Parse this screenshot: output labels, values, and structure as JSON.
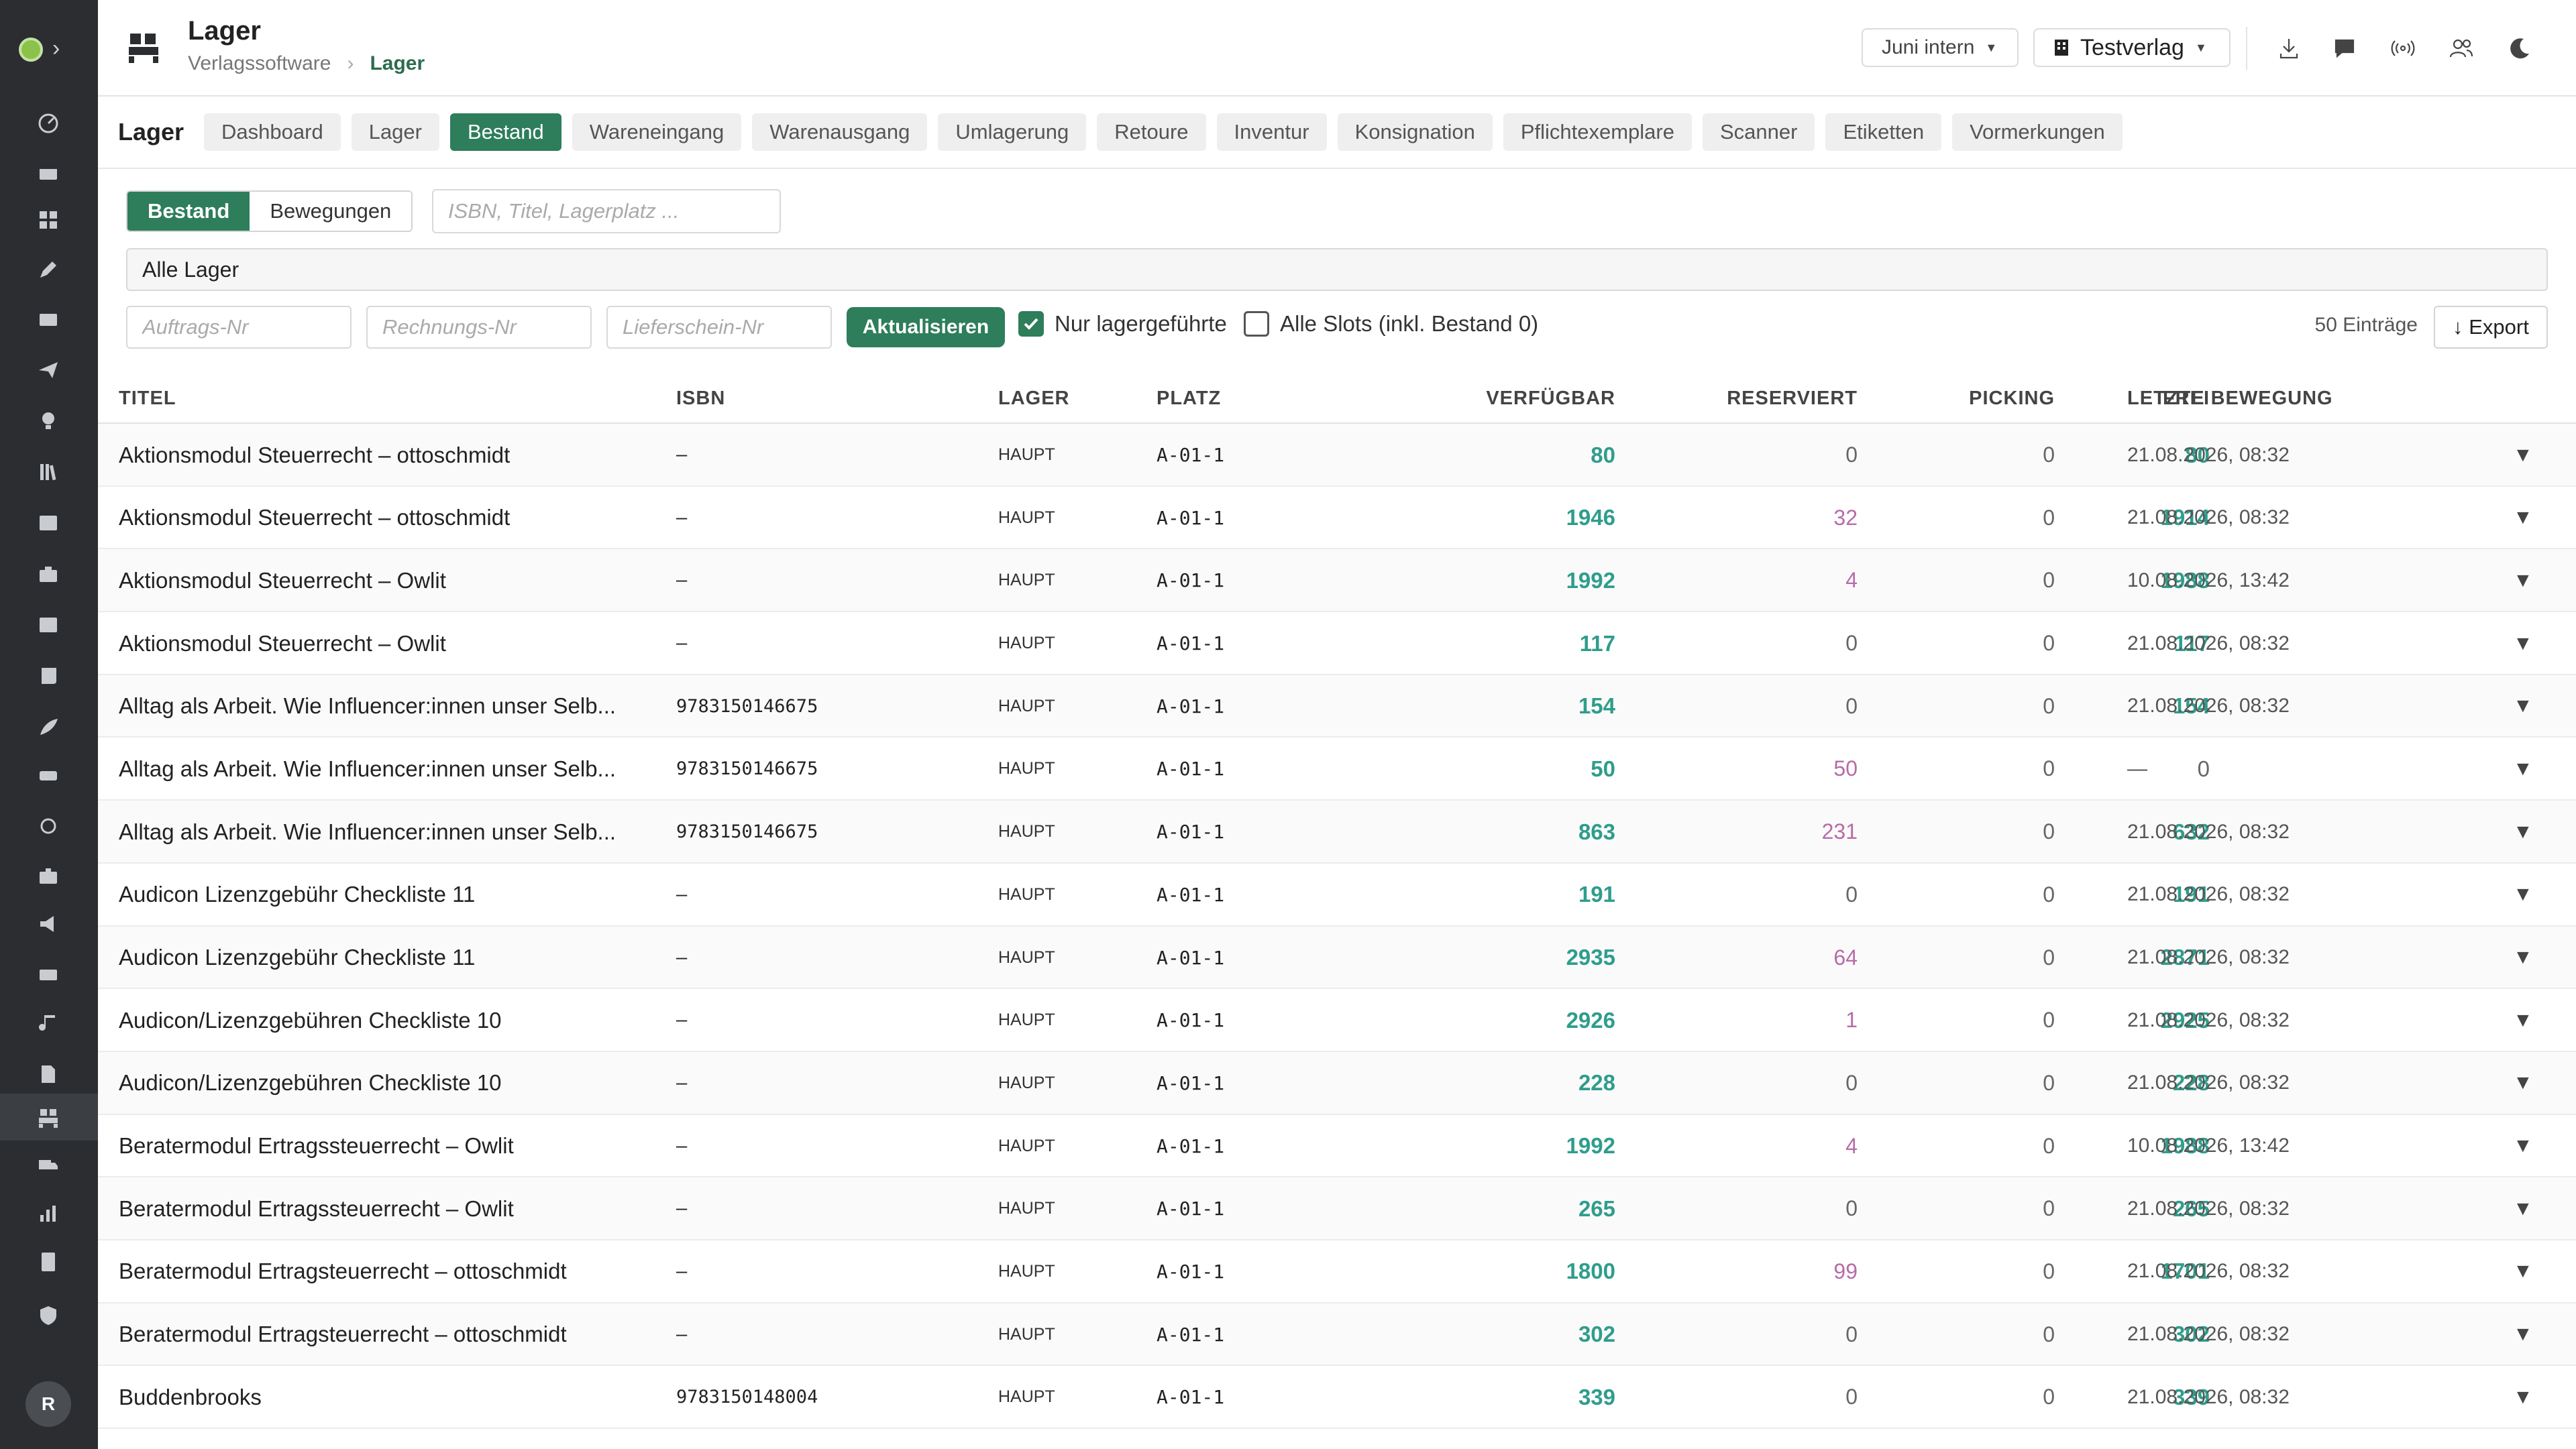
{
  "header": {
    "title": "Lager",
    "breadcrumb": [
      "Verlagssoftware",
      "Lager"
    ],
    "period_select": "Juni intern",
    "publisher_select": "Testverlag"
  },
  "module_tabs": {
    "module_label": "Lager",
    "items": [
      "Dashboard",
      "Lager",
      "Bestand",
      "Wareneingang",
      "Warenausgang",
      "Umlagerung",
      "Retoure",
      "Inventur",
      "Konsignation",
      "Pflichtexemplare",
      "Scanner",
      "Etiketten",
      "Vormerkungen"
    ],
    "active": "Bestand"
  },
  "filters": {
    "view_toggle": [
      "Bestand",
      "Bewegungen"
    ],
    "search_placeholder": "ISBN, Titel, Lagerplatz ...",
    "lager_select": "Alle Lager",
    "order_placeholder": "Auftrags-Nr",
    "invoice_placeholder": "Rechnungs-Nr",
    "delivery_placeholder": "Lieferschein-Nr",
    "refresh_label": "Aktualisieren",
    "only_stocked_label": "Nur lagergeführte",
    "only_stocked_checked": true,
    "all_slots_label": "Alle Slots (inkl. Bestand 0)",
    "all_slots_checked": false,
    "entry_count": "50 Einträge",
    "export_label": "↓ Export"
  },
  "table": {
    "columns": [
      "Titel",
      "ISBN",
      "Lager",
      "Platz",
      "Verfügbar",
      "Reserviert",
      "Picking",
      "Frei",
      "Letzte Bewegung"
    ],
    "rows": [
      {
        "titel": "Aktionsmodul Steuerrecht – ottoschmidt",
        "isbn": "–",
        "lager": "HAUPT",
        "platz": "A-01-1",
        "verfuegbar": "80",
        "reserviert": "0",
        "picking": "0",
        "frei": "80",
        "bewegung": "21.08.2026, 08:32"
      },
      {
        "titel": "Aktionsmodul Steuerrecht – ottoschmidt",
        "isbn": "–",
        "lager": "HAUPT",
        "platz": "A-01-1",
        "verfuegbar": "1946",
        "reserviert": "32",
        "picking": "0",
        "frei": "1914",
        "bewegung": "21.08.2026, 08:32"
      },
      {
        "titel": "Aktionsmodul Steuerrecht – Owlit",
        "isbn": "–",
        "lager": "HAUPT",
        "platz": "A-01-1",
        "verfuegbar": "1992",
        "reserviert": "4",
        "picking": "0",
        "frei": "1988",
        "bewegung": "10.08.2026, 13:42"
      },
      {
        "titel": "Aktionsmodul Steuerrecht – Owlit",
        "isbn": "–",
        "lager": "HAUPT",
        "platz": "A-01-1",
        "verfuegbar": "117",
        "reserviert": "0",
        "picking": "0",
        "frei": "117",
        "bewegung": "21.08.2026, 08:32"
      },
      {
        "titel": "Alltag als Arbeit. Wie Influencer:innen unser Selb...",
        "isbn": "9783150146675",
        "lager": "HAUPT",
        "platz": "A-01-1",
        "verfuegbar": "154",
        "reserviert": "0",
        "picking": "0",
        "frei": "154",
        "bewegung": "21.08.2026, 08:32"
      },
      {
        "titel": "Alltag als Arbeit. Wie Influencer:innen unser Selb...",
        "isbn": "9783150146675",
        "lager": "HAUPT",
        "platz": "A-01-1",
        "verfuegbar": "50",
        "reserviert": "50",
        "picking": "0",
        "frei": "0",
        "bewegung": "—"
      },
      {
        "titel": "Alltag als Arbeit. Wie Influencer:innen unser Selb...",
        "isbn": "9783150146675",
        "lager": "HAUPT",
        "platz": "A-01-1",
        "verfuegbar": "863",
        "reserviert": "231",
        "picking": "0",
        "frei": "632",
        "bewegung": "21.08.2026, 08:32"
      },
      {
        "titel": "Audicon Lizenzgebühr Checkliste 11",
        "isbn": "–",
        "lager": "HAUPT",
        "platz": "A-01-1",
        "verfuegbar": "191",
        "reserviert": "0",
        "picking": "0",
        "frei": "191",
        "bewegung": "21.08.2026, 08:32"
      },
      {
        "titel": "Audicon Lizenzgebühr Checkliste 11",
        "isbn": "–",
        "lager": "HAUPT",
        "platz": "A-01-1",
        "verfuegbar": "2935",
        "reserviert": "64",
        "picking": "0",
        "frei": "2871",
        "bewegung": "21.08.2026, 08:32"
      },
      {
        "titel": "Audicon/Lizenzgebühren Checkliste 10",
        "isbn": "–",
        "lager": "HAUPT",
        "platz": "A-01-1",
        "verfuegbar": "2926",
        "reserviert": "1",
        "picking": "0",
        "frei": "2925",
        "bewegung": "21.08.2026, 08:32"
      },
      {
        "titel": "Audicon/Lizenzgebühren Checkliste 10",
        "isbn": "–",
        "lager": "HAUPT",
        "platz": "A-01-1",
        "verfuegbar": "228",
        "reserviert": "0",
        "picking": "0",
        "frei": "228",
        "bewegung": "21.08.2026, 08:32"
      },
      {
        "titel": "Beratermodul Ertragssteuerrecht – Owlit",
        "isbn": "–",
        "lager": "HAUPT",
        "platz": "A-01-1",
        "verfuegbar": "1992",
        "reserviert": "4",
        "picking": "0",
        "frei": "1988",
        "bewegung": "10.08.2026, 13:42"
      },
      {
        "titel": "Beratermodul Ertragssteuerrecht – Owlit",
        "isbn": "–",
        "lager": "HAUPT",
        "platz": "A-01-1",
        "verfuegbar": "265",
        "reserviert": "0",
        "picking": "0",
        "frei": "265",
        "bewegung": "21.08.2026, 08:32"
      },
      {
        "titel": "Beratermodul Ertragsteuerrecht – ottoschmidt",
        "isbn": "–",
        "lager": "HAUPT",
        "platz": "A-01-1",
        "verfuegbar": "1800",
        "reserviert": "99",
        "picking": "0",
        "frei": "1701",
        "bewegung": "21.08.2026, 08:32"
      },
      {
        "titel": "Beratermodul Ertragsteuerrecht – ottoschmidt",
        "isbn": "–",
        "lager": "HAUPT",
        "platz": "A-01-1",
        "verfuegbar": "302",
        "reserviert": "0",
        "picking": "0",
        "frei": "302",
        "bewegung": "21.08.2026, 08:32"
      },
      {
        "titel": "Buddenbrooks",
        "isbn": "9783150148004",
        "lager": "HAUPT",
        "platz": "A-01-1",
        "verfuegbar": "339",
        "reserviert": "0",
        "picking": "0",
        "frei": "339",
        "bewegung": "21.08.2026, 08:32"
      }
    ]
  },
  "sidebar": {
    "icons": [
      "dashboard-gauge-icon",
      "calendar-icon",
      "grid-icon",
      "edit-icon",
      "inbox-icon",
      "send-icon",
      "lightbulb-icon",
      "library-icon",
      "image-icon",
      "briefcase-icon",
      "newspaper-icon",
      "scroll-icon",
      "feather-icon",
      "drive-icon",
      "circle-icon",
      "case-icon",
      "megaphone-icon",
      "ticket-icon",
      "music-icon",
      "document-icon",
      "warehouse-icon",
      "truck-icon",
      "chart-icon",
      "report-icon",
      "shield-icon"
    ],
    "active": "warehouse-icon",
    "avatar_initial": "R"
  },
  "colors": {
    "accent": "#2e7d5b",
    "rail": "#2b2d30",
    "number_teal": "#2f9d8c",
    "reserved_pink": "#b86ba8"
  }
}
